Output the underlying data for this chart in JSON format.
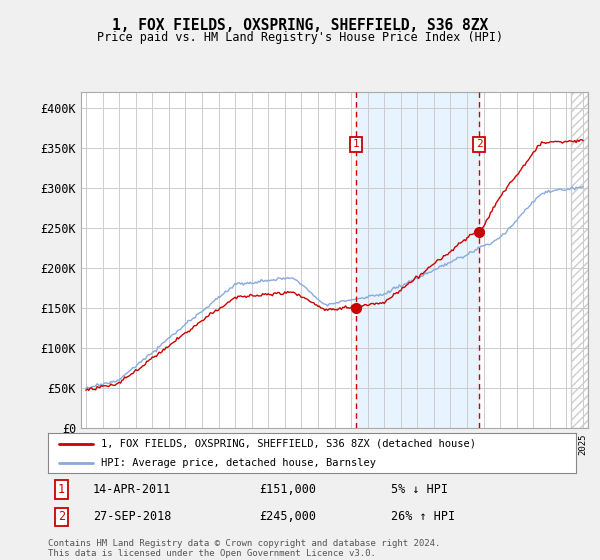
{
  "title": "1, FOX FIELDS, OXSPRING, SHEFFIELD, S36 8ZX",
  "subtitle": "Price paid vs. HM Land Registry's House Price Index (HPI)",
  "legend_line1": "1, FOX FIELDS, OXSPRING, SHEFFIELD, S36 8ZX (detached house)",
  "legend_line2": "HPI: Average price, detached house, Barnsley",
  "annotation1_label": "1",
  "annotation1_date": "14-APR-2011",
  "annotation1_price": "£151,000",
  "annotation1_hpi": "5% ↓ HPI",
  "annotation2_label": "2",
  "annotation2_date": "27-SEP-2018",
  "annotation2_price": "£245,000",
  "annotation2_hpi": "26% ↑ HPI",
  "footnote": "Contains HM Land Registry data © Crown copyright and database right 2024.\nThis data is licensed under the Open Government Licence v3.0.",
  "price_line_color": "#cc0000",
  "hpi_line_color": "#88aadd",
  "background_color": "#f0f0f0",
  "plot_bg_color": "#ffffff",
  "grid_color": "#cccccc",
  "annotation_vline_color": "#cc0000",
  "annotation_box_color": "#cc0000",
  "ylim": [
    0,
    420000
  ],
  "yticks": [
    0,
    50000,
    100000,
    150000,
    200000,
    250000,
    300000,
    350000,
    400000
  ],
  "ytick_labels": [
    "£0",
    "£50K",
    "£100K",
    "£150K",
    "£200K",
    "£250K",
    "£300K",
    "£350K",
    "£400K"
  ],
  "x_start_year": 1995,
  "x_end_year": 2025,
  "purchase1_year": 2011.28,
  "purchase1_price": 151000,
  "purchase2_year": 2018.74,
  "purchase2_price": 245000,
  "shaded_region_color": "#ddeeff",
  "hatch_region_alpha": 0.3
}
